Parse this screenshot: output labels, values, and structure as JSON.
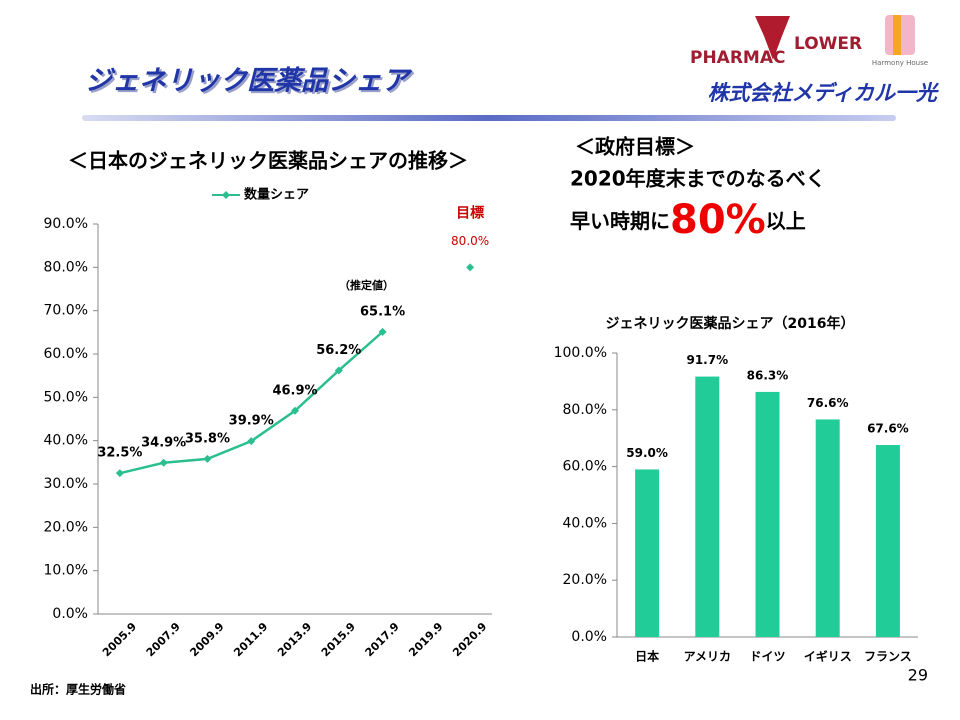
{
  "header": {
    "title": "ジェネリック医薬品シェア",
    "logo_pharmac": "PHARMAC",
    "logo_flower": "LOWER",
    "logo_harmony": "Harmony House",
    "logo_company": "株式会社メディカル一光"
  },
  "goal": {
    "heading": "＜政府目標＞",
    "line1": "2020年度末までのなるべく",
    "line2_pre": "早い時期に",
    "line2_big": "80%",
    "line2_post": "以上"
  },
  "footer": {
    "source": "出所：厚生労働省",
    "page": "29"
  },
  "chart_data": [
    {
      "type": "line",
      "title": "＜日本のジェネリック医薬品シェアの推移＞",
      "categories": [
        "2005.9",
        "2007.9",
        "2009.9",
        "2011.9",
        "2013.9",
        "2015.9",
        "2017.9",
        "2019.9",
        "2020.9"
      ],
      "series": [
        {
          "name": "数量シェア",
          "color": "#2bbf8f",
          "values": [
            32.5,
            34.9,
            35.8,
            39.9,
            46.9,
            56.2,
            65.1,
            null,
            null
          ],
          "value_labels": [
            "32.5%",
            "34.9%",
            "35.8%",
            "39.9%",
            "46.9%",
            "56.2%",
            "65.1%",
            null,
            null
          ]
        },
        {
          "name": "目標",
          "color": "#2bbf8f",
          "values": [
            null,
            null,
            null,
            null,
            null,
            null,
            null,
            null,
            80.0
          ],
          "value_labels": [
            null,
            null,
            null,
            null,
            null,
            null,
            null,
            null,
            "80.0%"
          ]
        }
      ],
      "annotation": "（推定値）",
      "ylim": [
        0,
        90
      ],
      "yticks": [
        {
          "value": 0,
          "label": "0.0%"
        },
        {
          "value": 10,
          "label": "10.0%"
        },
        {
          "value": 20,
          "label": "20.0%"
        },
        {
          "value": 30,
          "label": "30.0%"
        },
        {
          "value": 40,
          "label": "40.0%"
        },
        {
          "value": 50,
          "label": "50.0%"
        },
        {
          "value": 60,
          "label": "60.0%"
        },
        {
          "value": 70,
          "label": "70.0%"
        },
        {
          "value": 80,
          "label": "80.0%"
        },
        {
          "value": 90,
          "label": "90.0%"
        }
      ],
      "grid": false
    },
    {
      "type": "bar",
      "title": "ジェネリック医薬品シェア（2016年）",
      "categories": [
        "日本",
        "アメリカ",
        "ドイツ",
        "イギリス",
        "フランス"
      ],
      "values": [
        59.0,
        91.7,
        86.3,
        76.6,
        67.6
      ],
      "value_labels": [
        "59.0%",
        "91.7%",
        "86.3%",
        "76.6%",
        "67.6%"
      ],
      "color": "#22cc99",
      "ylim": [
        0,
        100
      ],
      "yticks": [
        {
          "value": 0,
          "label": "0.0%"
        },
        {
          "value": 20,
          "label": "20.0%"
        },
        {
          "value": 40,
          "label": "40.0%"
        },
        {
          "value": 60,
          "label": "60.0%"
        },
        {
          "value": 80,
          "label": "80.0%"
        },
        {
          "value": 100,
          "label": "100.0%"
        }
      ],
      "grid": false
    }
  ]
}
